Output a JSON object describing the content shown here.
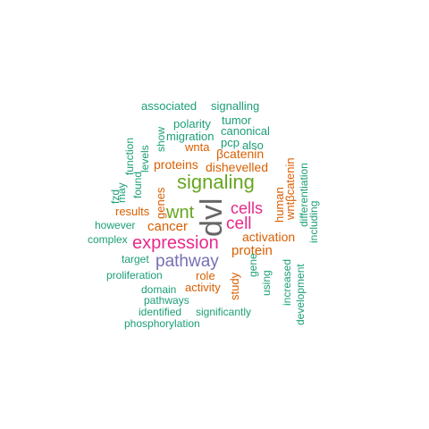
{
  "colors": {
    "teal": "#1b9e77",
    "orange": "#d95f02",
    "purple": "#7570b3",
    "magenta": "#e7298a",
    "green": "#66a61e",
    "gray": "#666666"
  },
  "words": [
    {
      "text": "dvl",
      "color": "gray",
      "weight": 10,
      "vertical": true
    },
    {
      "text": "signaling",
      "color": "green",
      "weight": 8
    },
    {
      "text": "expression",
      "color": "magenta",
      "weight": 7
    },
    {
      "text": "wnt",
      "color": "green",
      "weight": 7
    },
    {
      "text": "pathway",
      "color": "purple",
      "weight": 6
    },
    {
      "text": "cells",
      "color": "magenta",
      "weight": 6
    },
    {
      "text": "cell",
      "color": "magenta",
      "weight": 6
    },
    {
      "text": "cancer",
      "color": "orange",
      "weight": 5
    },
    {
      "text": "protein",
      "color": "orange",
      "weight": 5
    },
    {
      "text": "dishevelled",
      "color": "orange",
      "weight": 5
    },
    {
      "text": "activation",
      "color": "orange",
      "weight": 4
    },
    {
      "text": "proteins",
      "color": "orange",
      "weight": 4
    },
    {
      "text": "βcatenin",
      "color": "orange",
      "weight": 4
    },
    {
      "text": "wnta",
      "color": "orange",
      "weight": 4
    },
    {
      "text": "results",
      "color": "orange",
      "weight": 4
    },
    {
      "text": "role",
      "color": "orange",
      "weight": 4
    },
    {
      "text": "activity",
      "color": "orange",
      "weight": 4
    },
    {
      "text": "genes",
      "color": "orange",
      "weight": 4,
      "vertical": true
    },
    {
      "text": "human",
      "color": "orange",
      "weight": 4,
      "vertical": true
    },
    {
      "text": "wntβcatenin",
      "color": "orange",
      "weight": 4,
      "vertical": true
    },
    {
      "text": "study",
      "color": "orange",
      "weight": 4,
      "vertical": true
    },
    {
      "text": "associated",
      "color": "teal",
      "weight": 3
    },
    {
      "text": "signalling",
      "color": "teal",
      "weight": 3
    },
    {
      "text": "tumor",
      "color": "teal",
      "weight": 3
    },
    {
      "text": "polarity",
      "color": "teal",
      "weight": 3
    },
    {
      "text": "canonical",
      "color": "teal",
      "weight": 3
    },
    {
      "text": "migration",
      "color": "teal",
      "weight": 3
    },
    {
      "text": "pcp",
      "color": "teal",
      "weight": 3
    },
    {
      "text": "also",
      "color": "teal",
      "weight": 3
    },
    {
      "text": "however",
      "color": "teal",
      "weight": 3
    },
    {
      "text": "complex",
      "color": "teal",
      "weight": 3
    },
    {
      "text": "target",
      "color": "teal",
      "weight": 3
    },
    {
      "text": "proliferation",
      "color": "teal",
      "weight": 3
    },
    {
      "text": "domain",
      "color": "teal",
      "weight": 3
    },
    {
      "text": "pathways",
      "color": "teal",
      "weight": 3
    },
    {
      "text": "identified",
      "color": "teal",
      "weight": 3
    },
    {
      "text": "significantly",
      "color": "teal",
      "weight": 3
    },
    {
      "text": "phosphorylation",
      "color": "teal",
      "weight": 3
    },
    {
      "text": "show",
      "color": "teal",
      "weight": 3,
      "vertical": true
    },
    {
      "text": "levels",
      "color": "teal",
      "weight": 3,
      "vertical": true
    },
    {
      "text": "function",
      "color": "teal",
      "weight": 3,
      "vertical": true
    },
    {
      "text": "may",
      "color": "teal",
      "weight": 3,
      "vertical": true
    },
    {
      "text": "fzd",
      "color": "teal",
      "weight": 3,
      "vertical": true
    },
    {
      "text": "found",
      "color": "teal",
      "weight": 3,
      "vertical": true
    },
    {
      "text": "differentiation",
      "color": "teal",
      "weight": 3,
      "vertical": true
    },
    {
      "text": "including",
      "color": "teal",
      "weight": 3,
      "vertical": true
    },
    {
      "text": "gene",
      "color": "teal",
      "weight": 3,
      "vertical": true
    },
    {
      "text": "using",
      "color": "teal",
      "weight": 3,
      "vertical": true
    },
    {
      "text": "increased",
      "color": "teal",
      "weight": 3,
      "vertical": true
    },
    {
      "text": "development",
      "color": "teal",
      "weight": 3,
      "vertical": true
    }
  ]
}
